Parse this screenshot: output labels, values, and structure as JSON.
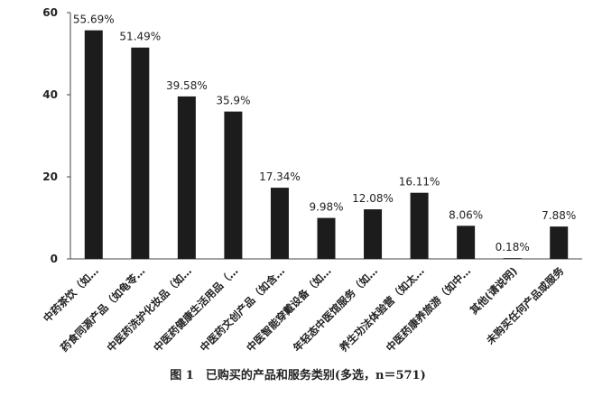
{
  "chart_data": {
    "type": "bar",
    "caption": "图 1　已购买的产品和服务类别(多选，n＝571)",
    "categories": [
      "中药茶饮（如…",
      "药食同源产品（如龟苓…",
      "中医药洗护化妆品（如…",
      "中医药健康生活用品（…",
      "中医药文创产品（如含…",
      "中医智能穿戴设备（如…",
      "年轻态中医馆服务（如…",
      "养生功法体验营（如太…",
      "中医药康养旅游（如中…",
      "其他(请说明)",
      "未购买任何产品或服务"
    ],
    "values": [
      55.69,
      51.49,
      39.58,
      35.9,
      17.34,
      9.98,
      12.08,
      16.11,
      8.06,
      0.18,
      7.88
    ],
    "value_labels": [
      "55.69%",
      "51.49%",
      "39.58%",
      "35.9%",
      "17.34%",
      "9.98%",
      "12.08%",
      "16.11%",
      "8.06%",
      "0.18%",
      "7.88%"
    ],
    "color": "#1c1c1c",
    "ylim": [
      0,
      60
    ],
    "yticks": [
      0,
      20,
      40,
      60
    ],
    "grid": false
  }
}
